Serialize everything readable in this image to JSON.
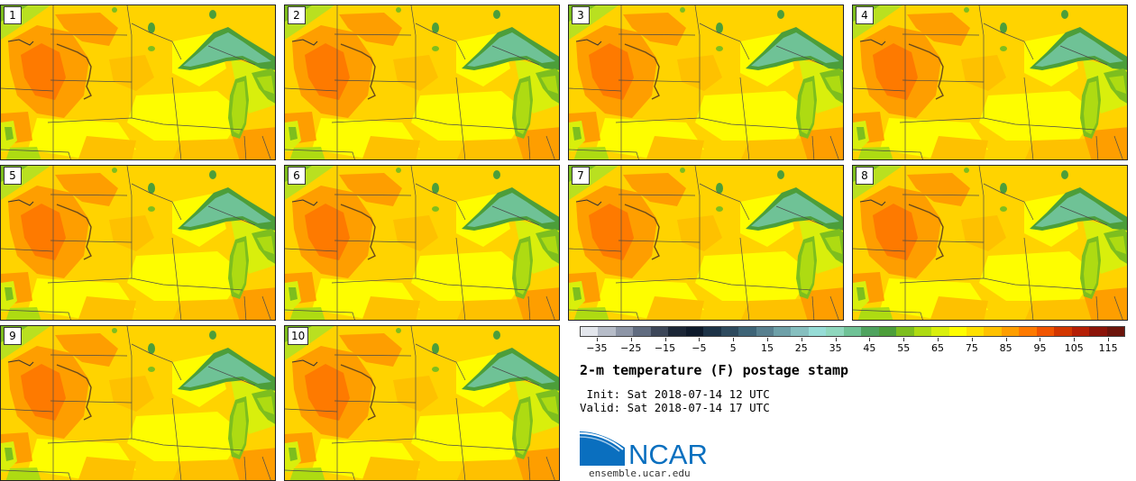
{
  "panels": [
    "1",
    "2",
    "3",
    "4",
    "5",
    "6",
    "7",
    "8",
    "9",
    "10"
  ],
  "colorbar": {
    "colors": [
      "#e3e6ec",
      "#b6bcc8",
      "#8d95a6",
      "#616c80",
      "#3d4759",
      "#1c2737",
      "#0e1a2b",
      "#1d3347",
      "#2e4a5e",
      "#3e6477",
      "#58808f",
      "#6ea0a8",
      "#86bfbf",
      "#96dcd6",
      "#8fd7bd",
      "#6fc296",
      "#4fa35f",
      "#4c9e3a",
      "#7dbe1e",
      "#aedb12",
      "#d9ef0c",
      "#fefd00",
      "#fee000",
      "#fec100",
      "#fe9e00",
      "#fe7a00",
      "#f05400",
      "#d23600",
      "#b51f06",
      "#8c1409",
      "#6c140b"
    ],
    "ticks": [
      "-35",
      "-25",
      "-15",
      "-5",
      "5",
      "15",
      "25",
      "35",
      "45",
      "55",
      "65",
      "75",
      "85",
      "95",
      "105",
      "115"
    ],
    "min": -40,
    "max": 120
  },
  "title": "2-m temperature (F) postage stamp",
  "init_text": " Init: Sat 2018-07-14 12 UTC",
  "valid_text": "Valid: Sat 2018-07-14 17 UTC",
  "logo": {
    "text": "NCAR",
    "site": "ensemble.ucar.edu",
    "brand_color": "#0a6fbf"
  }
}
